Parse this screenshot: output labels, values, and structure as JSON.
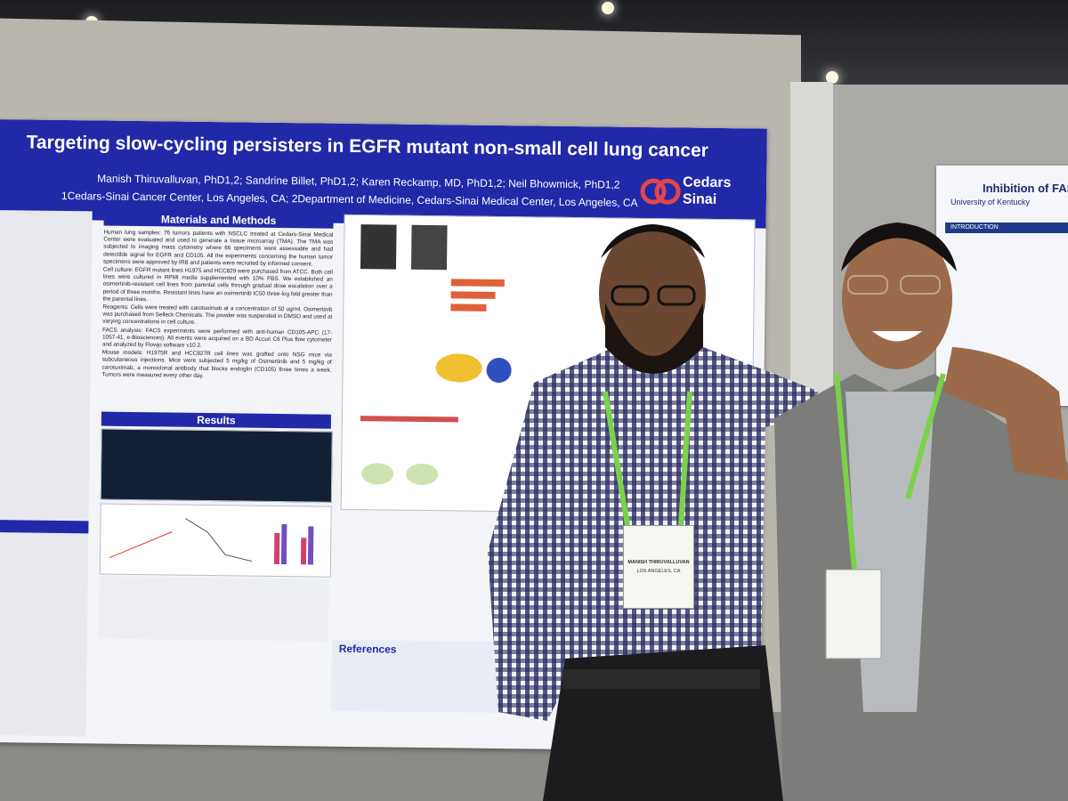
{
  "poster": {
    "title": "Targeting slow-cycling persisters in EGFR mutant non-small cell lung cancer",
    "authors": "Manish Thiruvalluvan, PhD1,2; Sandrine Billet, PhD1,2; Karen Reckamp, MD, PhD1,2; Neil Bhowmick, PhD1,2",
    "affiliations": "1Cedars-Sinai Cancer Center, Los Angeles, CA; 2Department of Medicine, Cedars-Sinai Medical Center, Los Angeles, CA",
    "logo": "Cedars Sinai",
    "methods_heading": "Materials and Methods",
    "methods": [
      "Human lung samples: 76 tumors patients with NSCLC treated at Cedars-Sinai Medical Center were evaluated and used to generate a tissue microarray (TMA). The TMA was subjected to imaging mass cytometry where 66 specimens were assessable and had detectible signal for EGFR and CD105. All the experiments concerning the human tumor specimens were approved by IRB and patients were recruited by informed consent.",
      "Cell culture: EGFR mutant lines H1975 and HCC829 were purchased from ATCC. Both cell lines were cultured in RPMI media supplemented with 10% FBS. We established an osimertinib-resistant cell lines from parental cells through gradual dose escalation over a period of three months. Resistant lines have an osimertinib IC50 three-log fold greater than the parental lines.",
      "Reagents: Cells were treated with carotuximab at a concentration of 50 ug/ml. Osimertinib was purchased from Selleck Chemicals. The powder was suspended in DMSO and used at varying concentrations in cell culture.",
      "FACS analysis: FACS experiments were performed with anti-human CD105-APC (17-1057-41, e-Biosciences). All events were acquired on a BD Accuri C6 Plus flow cytometer and analyzed by Flowjo software v10.2.",
      "Mouse models: H1975R and HCC827R cell lines was grafted onto NSG mice via subcutaneous injections. Mice were subjected 5 mg/kg of Osimertinib and 5 mg/kg of carotuximab, a monoclonal antibody that blocks endoglin (CD105) three times a week. Tumors were measured every other day."
    ],
    "results_heading": "Results",
    "references_heading": "References"
  },
  "side_poster": {
    "title": "Inhibition of FASN",
    "institution": "University of Kentucky",
    "section": "INTRODUCTION"
  },
  "badge": {
    "name": "MANISH THIRUVALLUVAN",
    "location": "LOS ANGELES, CA"
  }
}
